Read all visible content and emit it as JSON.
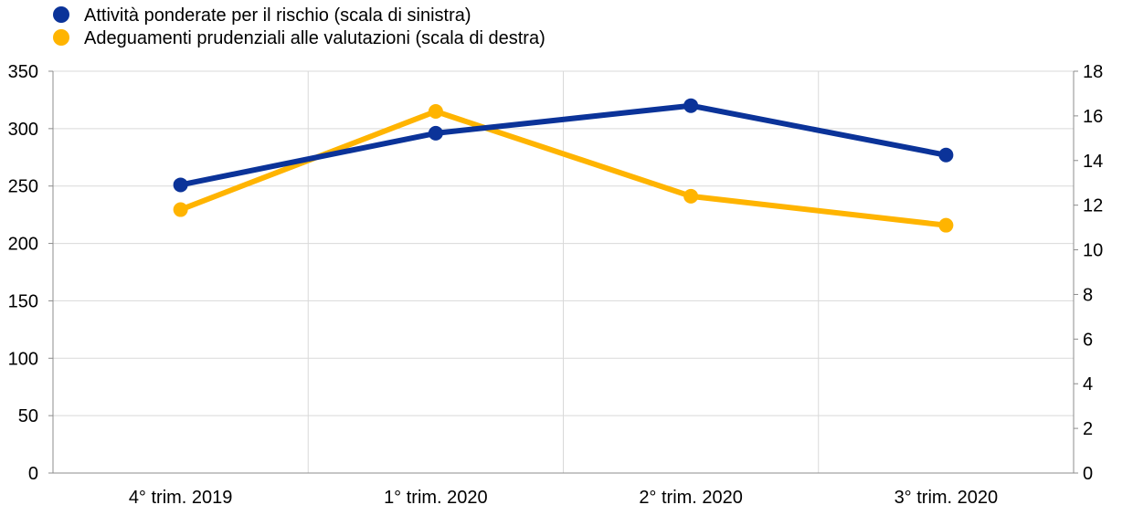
{
  "chart_data": {
    "type": "line",
    "categories": [
      "4° trim. 2019",
      "1° trim. 2020",
      "2° trim. 2020",
      "3° trim. 2020"
    ],
    "series": [
      {
        "name": "Attività ponderate per il rischio (scala di sinistra)",
        "axis": "left",
        "color": "#0b3399",
        "values": [
          251,
          296,
          320,
          277
        ]
      },
      {
        "name": "Adeguamenti prudenziali alle valutazioni (scala di destra)",
        "axis": "right",
        "color": "#ffb400",
        "values": [
          11.8,
          16.2,
          12.4,
          11.1
        ]
      }
    ],
    "y_left": {
      "min": 0,
      "max": 350,
      "ticks": [
        "0",
        "50",
        "100",
        "150",
        "200",
        "250",
        "300",
        "350"
      ]
    },
    "y_right": {
      "min": 0,
      "max": 18,
      "ticks": [
        "0",
        "2",
        "4",
        "6",
        "8",
        "10",
        "12",
        "14",
        "16",
        "18"
      ]
    },
    "grid": true,
    "legend_position": "top-left"
  }
}
